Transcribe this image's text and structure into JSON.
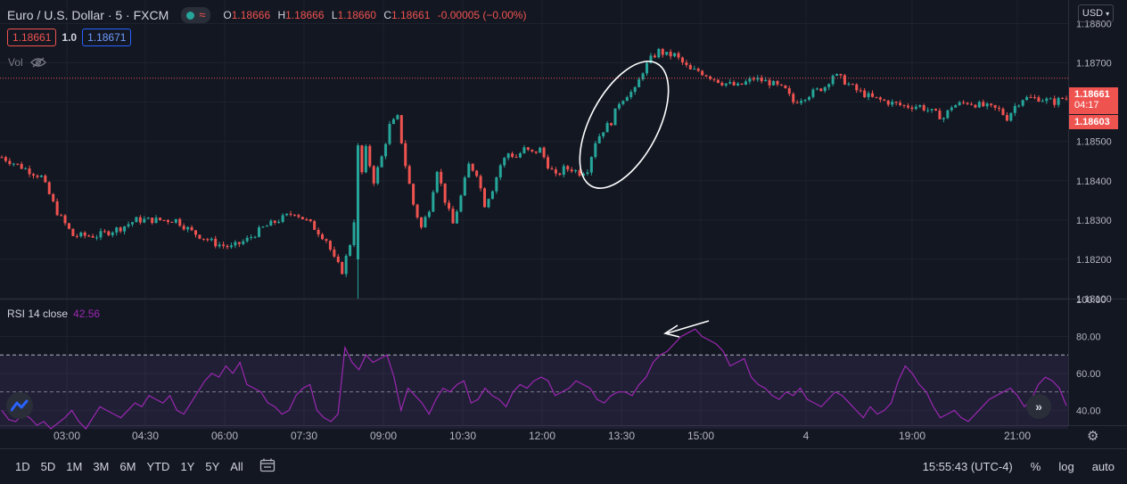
{
  "header": {
    "symbol": "Euro / U.S. Dollar · 5 · FXCM",
    "ohlc": {
      "o_label": "O",
      "o": "1.18666",
      "h_label": "H",
      "h": "1.18666",
      "l_label": "L",
      "l": "1.18660",
      "c_label": "C",
      "c": "1.18661",
      "change": "-0.00005 (−0.00%)"
    },
    "bid": "1.18661",
    "spread": "1.0",
    "ask": "1.18671",
    "vol_label": "Vol"
  },
  "currency_button": "USD",
  "price_tags": {
    "last": "1.18661",
    "countdown": "04:17",
    "low": "1.18603"
  },
  "rsi": {
    "label": "RSI 14 close",
    "value": "42.56"
  },
  "toolbar": {
    "ranges": [
      "1D",
      "5D",
      "1M",
      "3M",
      "6M",
      "YTD",
      "1Y",
      "5Y",
      "All"
    ],
    "time": "15:55:43 (UTC-4)",
    "percent": "%",
    "log": "log",
    "auto": "auto"
  },
  "colors": {
    "up": "#26a69a",
    "down": "#ef5350",
    "rsi": "#9c27b0",
    "background": "#131722",
    "ask_box": "#2962ff"
  },
  "icons": {
    "hide_volume": "eye-slash-icon",
    "calendar": "calendar-range-icon",
    "settings": "gear-icon",
    "logo": "tradingview-logo-icon",
    "scroll": "double-chevron-right-icon"
  },
  "chart_data": [
    {
      "type": "candlestick",
      "title": "Euro / U.S. Dollar · 5 · FXCM",
      "x_ticks": [
        "03:00",
        "04:30",
        "06:00",
        "07:30",
        "09:00",
        "10:30",
        "12:00",
        "13:30",
        "15:00",
        "4",
        "19:00",
        "21:00"
      ],
      "y_ticks": [
        "1.18800",
        "1.18700",
        "1.18600",
        "1.18500",
        "1.18400",
        "1.18300",
        "1.18200",
        "1.18100"
      ],
      "ylim": [
        1.181,
        1.1886
      ],
      "last_price": 1.18661,
      "close_path": [
        [
          0,
          1.1846
        ],
        [
          6,
          1.1843
        ],
        [
          10,
          1.1841
        ],
        [
          14,
          1.1832
        ],
        [
          18,
          1.1826
        ],
        [
          24,
          1.1826
        ],
        [
          30,
          1.1828
        ],
        [
          34,
          1.183
        ],
        [
          38,
          1.183
        ],
        [
          44,
          1.183
        ],
        [
          48,
          1.1827
        ],
        [
          54,
          1.1824
        ],
        [
          58,
          1.1823
        ],
        [
          62,
          1.1825
        ],
        [
          66,
          1.1828
        ],
        [
          70,
          1.183
        ],
        [
          74,
          1.1832
        ],
        [
          78,
          1.1829
        ],
        [
          82,
          1.1825
        ],
        [
          84,
          1.182
        ],
        [
          86,
          1.1817
        ],
        [
          88,
          1.1824
        ],
        [
          90,
          1.1836
        ],
        [
          92,
          1.1848
        ],
        [
          94,
          1.184
        ],
        [
          96,
          1.1846
        ],
        [
          98,
          1.1854
        ],
        [
          100,
          1.1856
        ],
        [
          102,
          1.1844
        ],
        [
          104,
          1.1834
        ],
        [
          106,
          1.1828
        ],
        [
          108,
          1.1833
        ],
        [
          110,
          1.1843
        ],
        [
          112,
          1.1835
        ],
        [
          114,
          1.1829
        ],
        [
          116,
          1.1836
        ],
        [
          118,
          1.1844
        ],
        [
          120,
          1.1842
        ],
        [
          122,
          1.1834
        ],
        [
          124,
          1.1838
        ],
        [
          126,
          1.1844
        ],
        [
          128,
          1.1847
        ],
        [
          130,
          1.1846
        ],
        [
          132,
          1.1848
        ],
        [
          134,
          1.1847
        ],
        [
          136,
          1.1848
        ],
        [
          138,
          1.1844
        ],
        [
          140,
          1.1841
        ],
        [
          142,
          1.1843
        ],
        [
          144,
          1.1843
        ],
        [
          146,
          1.1842
        ],
        [
          148,
          1.1843
        ],
        [
          150,
          1.185
        ],
        [
          152,
          1.1853
        ],
        [
          154,
          1.1855
        ],
        [
          156,
          1.186
        ],
        [
          158,
          1.1862
        ],
        [
          160,
          1.1863
        ],
        [
          162,
          1.1868
        ],
        [
          164,
          1.1871
        ],
        [
          166,
          1.1873
        ],
        [
          168,
          1.1872
        ],
        [
          170,
          1.1872
        ],
        [
          172,
          1.187
        ],
        [
          174,
          1.1868
        ],
        [
          176,
          1.1868
        ],
        [
          178,
          1.1867
        ],
        [
          182,
          1.1865
        ],
        [
          186,
          1.1864
        ],
        [
          190,
          1.1866
        ],
        [
          194,
          1.1865
        ],
        [
          198,
          1.1863
        ],
        [
          200,
          1.186
        ],
        [
          204,
          1.1862
        ],
        [
          208,
          1.1864
        ],
        [
          210,
          1.1867
        ],
        [
          212,
          1.1866
        ],
        [
          216,
          1.1863
        ],
        [
          220,
          1.1861
        ],
        [
          224,
          1.186
        ],
        [
          228,
          1.1859
        ],
        [
          232,
          1.1859
        ],
        [
          236,
          1.1857
        ],
        [
          238,
          1.1856
        ],
        [
          240,
          1.1859
        ],
        [
          244,
          1.186
        ],
        [
          248,
          1.1859
        ],
        [
          252,
          1.1858
        ],
        [
          254,
          1.1856
        ],
        [
          256,
          1.1859
        ],
        [
          258,
          1.1861
        ],
        [
          262,
          1.1861
        ],
        [
          266,
          1.186
        ],
        [
          268,
          1.1861
        ]
      ]
    },
    {
      "type": "line",
      "title": "RSI 14 close",
      "y_ticks": [
        "100.00",
        "80.00",
        "60.00",
        "40.00"
      ],
      "ylim": [
        32,
        100
      ],
      "bands": {
        "upper": 70,
        "middle": 50,
        "lower": 30
      },
      "series": [
        {
          "name": "RSI 14 close",
          "values": [
            40,
            35,
            34,
            38,
            36,
            32,
            34,
            30,
            33,
            36,
            40,
            34,
            30,
            36,
            42,
            40,
            38,
            36,
            40,
            44,
            42,
            48,
            46,
            44,
            48,
            40,
            38,
            44,
            50,
            56,
            60,
            58,
            64,
            60,
            66,
            54,
            52,
            50,
            44,
            42,
            38,
            40,
            48,
            52,
            54,
            40,
            36,
            34,
            38,
            74,
            66,
            62,
            70,
            66,
            68,
            70,
            58,
            40,
            52,
            48,
            44,
            38,
            46,
            52,
            50,
            54,
            56,
            44,
            46,
            52,
            48,
            46,
            42,
            50,
            54,
            52,
            56,
            58,
            56,
            48,
            50,
            52,
            56,
            54,
            52,
            46,
            44,
            48,
            50,
            50,
            48,
            54,
            58,
            66,
            70,
            72,
            76,
            80,
            82,
            84,
            80,
            78,
            76,
            72,
            64,
            66,
            68,
            58,
            54,
            52,
            48,
            46,
            50,
            48,
            52,
            46,
            44,
            42,
            46,
            50,
            48,
            44,
            40,
            36,
            42,
            38,
            40,
            44,
            56,
            64,
            60,
            54,
            50,
            42,
            36,
            38,
            40,
            36,
            34,
            38,
            42,
            46,
            48,
            50,
            52,
            48,
            42,
            46,
            54,
            58,
            56,
            52,
            42.56
          ]
        }
      ]
    }
  ]
}
